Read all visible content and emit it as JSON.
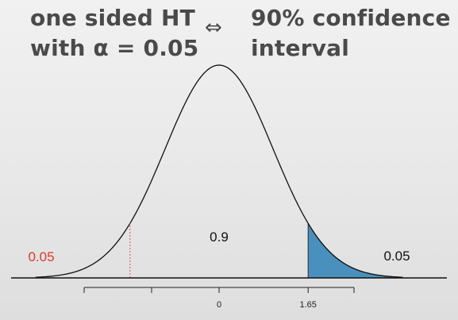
{
  "heading_left": {
    "line1": "one sided HT",
    "line2": "with α = 0.05"
  },
  "arrow": "⇔",
  "heading_right": {
    "line1": "90% confidence",
    "line2": "interval"
  },
  "chart_data": {
    "type": "area",
    "distribution": "standard normal density",
    "x_range": [
      -3.4,
      3.4
    ],
    "axis_ticks": [
      -2.5,
      -1.25,
      0,
      1.65,
      2.5
    ],
    "tick_labels": {
      "0": "0",
      "1.65": "1.65"
    },
    "critical_value": 1.65,
    "mirror_value": -1.65,
    "shaded_region": {
      "from": 1.65,
      "to": 3.4
    },
    "annotations": {
      "left_tail": "0.05",
      "center": "0.9",
      "right_tail": "0.05"
    },
    "colors": {
      "curve": "#111111",
      "shade": "#4a90bf",
      "left_tail_label": "#d93a2b",
      "dotted_line": "#e05050"
    }
  }
}
